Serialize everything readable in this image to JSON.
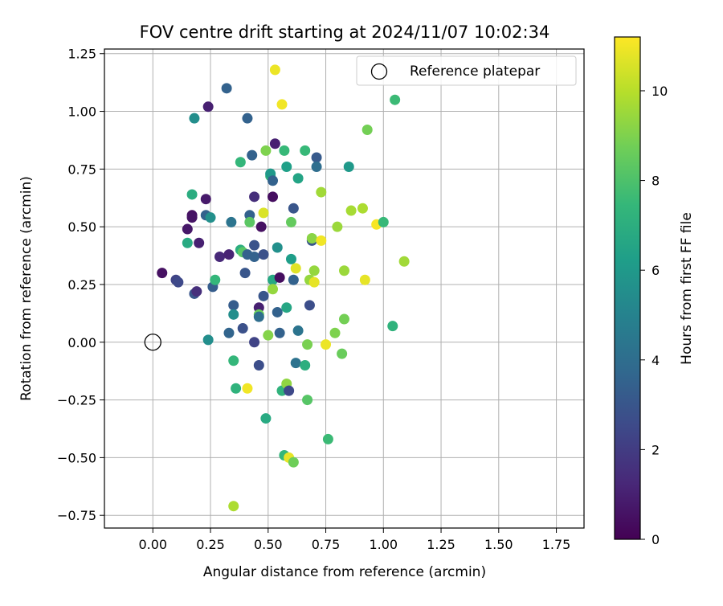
{
  "chart_data": {
    "type": "scatter",
    "title": "FOV centre drift starting at 2024/11/07 10:02:34",
    "xlabel": "Angular distance from reference (arcmin)",
    "ylabel": "Rotation from reference (arcmin)",
    "xlim": [
      -0.21,
      1.87
    ],
    "ylim": [
      -0.805,
      1.27
    ],
    "x_ticks": [
      0.0,
      0.25,
      0.5,
      0.75,
      1.0,
      1.25,
      1.5,
      1.75
    ],
    "x_tick_labels": [
      "0.00",
      "0.25",
      "0.50",
      "0.75",
      "1.00",
      "1.25",
      "1.50",
      "1.75"
    ],
    "y_ticks": [
      -0.75,
      -0.5,
      -0.25,
      0.0,
      0.25,
      0.5,
      0.75,
      1.0,
      1.25
    ],
    "y_tick_labels": [
      "−0.75",
      "−0.50",
      "−0.25",
      "0.00",
      "0.25",
      "0.50",
      "0.75",
      "1.00",
      "1.25"
    ],
    "grid": true,
    "legend": {
      "placement": "top-right",
      "entries": [
        "Reference platepar"
      ]
    },
    "reference_point": {
      "name": "Reference platepar",
      "x": 0.0,
      "y": 0.0
    },
    "colorbar": {
      "label": "Hours from first FF file",
      "colormap": "viridis",
      "range": [
        0,
        11.2
      ],
      "ticks": [
        0,
        2,
        4,
        6,
        8,
        10
      ],
      "tick_labels": [
        "0",
        "2",
        "4",
        "6",
        "8",
        "10"
      ]
    },
    "points": [
      {
        "x": 0.04,
        "y": 0.3,
        "h": 0.5
      },
      {
        "x": 0.1,
        "y": 0.27,
        "h": 2.3
      },
      {
        "x": 0.11,
        "y": 0.26,
        "h": 2.5
      },
      {
        "x": 0.15,
        "y": 0.49,
        "h": 0.7
      },
      {
        "x": 0.15,
        "y": 0.43,
        "h": 6.8
      },
      {
        "x": 0.17,
        "y": 0.64,
        "h": 6.9
      },
      {
        "x": 0.17,
        "y": 0.55,
        "h": 0.5
      },
      {
        "x": 0.17,
        "y": 0.54,
        "h": 0.6
      },
      {
        "x": 0.18,
        "y": 0.97,
        "h": 5.5
      },
      {
        "x": 0.18,
        "y": 0.21,
        "h": 3.0
      },
      {
        "x": 0.19,
        "y": 0.22,
        "h": 1.5
      },
      {
        "x": 0.2,
        "y": 0.43,
        "h": 1.0
      },
      {
        "x": 0.23,
        "y": 0.62,
        "h": 0.8
      },
      {
        "x": 0.23,
        "y": 0.55,
        "h": 3.5
      },
      {
        "x": 0.24,
        "y": 1.02,
        "h": 1.0
      },
      {
        "x": 0.24,
        "y": 0.01,
        "h": 5.5
      },
      {
        "x": 0.25,
        "y": 0.54,
        "h": 5.6
      },
      {
        "x": 0.26,
        "y": 0.24,
        "h": 3.3
      },
      {
        "x": 0.27,
        "y": 0.27,
        "h": 7.4
      },
      {
        "x": 0.29,
        "y": 0.37,
        "h": 1.3
      },
      {
        "x": 0.32,
        "y": 1.1,
        "h": 3.5
      },
      {
        "x": 0.33,
        "y": 0.04,
        "h": 3.6
      },
      {
        "x": 0.33,
        "y": 0.38,
        "h": 1.1
      },
      {
        "x": 0.34,
        "y": 0.52,
        "h": 4.3
      },
      {
        "x": 0.35,
        "y": -0.08,
        "h": 7.4
      },
      {
        "x": 0.35,
        "y": 0.16,
        "h": 3.3
      },
      {
        "x": 0.35,
        "y": 0.12,
        "h": 5.5
      },
      {
        "x": 0.36,
        "y": -0.2,
        "h": 7.2
      },
      {
        "x": 0.35,
        "y": -0.71,
        "h": 9.8
      },
      {
        "x": 0.38,
        "y": 0.78,
        "h": 7.4
      },
      {
        "x": 0.38,
        "y": 0.4,
        "h": 7.0
      },
      {
        "x": 0.39,
        "y": 0.39,
        "h": 8.2
      },
      {
        "x": 0.39,
        "y": 0.06,
        "h": 2.8
      },
      {
        "x": 0.4,
        "y": 0.3,
        "h": 3.0
      },
      {
        "x": 0.41,
        "y": 0.38,
        "h": 3.5
      },
      {
        "x": 0.41,
        "y": 0.97,
        "h": 3.5
      },
      {
        "x": 0.41,
        "y": -0.2,
        "h": 11.0
      },
      {
        "x": 0.42,
        "y": 0.55,
        "h": 3.5
      },
      {
        "x": 0.42,
        "y": 0.52,
        "h": 8.3
      },
      {
        "x": 0.43,
        "y": 0.81,
        "h": 3.5
      },
      {
        "x": 0.44,
        "y": 0.42,
        "h": 2.9
      },
      {
        "x": 0.44,
        "y": 0.37,
        "h": 3.5
      },
      {
        "x": 0.44,
        "y": 0.63,
        "h": 1.5
      },
      {
        "x": 0.44,
        "y": 0.0,
        "h": 2.3
      },
      {
        "x": 0.46,
        "y": 0.15,
        "h": 1.0
      },
      {
        "x": 0.46,
        "y": 0.12,
        "h": 8.6
      },
      {
        "x": 0.46,
        "y": 0.11,
        "h": 4.0
      },
      {
        "x": 0.46,
        "y": -0.1,
        "h": 2.7
      },
      {
        "x": 0.47,
        "y": 0.5,
        "h": 0.5
      },
      {
        "x": 0.48,
        "y": 0.38,
        "h": 2.8
      },
      {
        "x": 0.48,
        "y": 0.2,
        "h": 3.0
      },
      {
        "x": 0.48,
        "y": 0.56,
        "h": 10.6
      },
      {
        "x": 0.49,
        "y": 0.83,
        "h": 9.0
      },
      {
        "x": 0.49,
        "y": -0.33,
        "h": 6.8
      },
      {
        "x": 0.5,
        "y": 0.03,
        "h": 9.1
      },
      {
        "x": 0.51,
        "y": 0.72,
        "h": 7.5
      },
      {
        "x": 0.51,
        "y": 0.73,
        "h": 6.0
      },
      {
        "x": 0.52,
        "y": 0.27,
        "h": 6.7
      },
      {
        "x": 0.52,
        "y": 0.7,
        "h": 3.5
      },
      {
        "x": 0.52,
        "y": 0.63,
        "h": 0.4
      },
      {
        "x": 0.52,
        "y": 0.23,
        "h": 9.4
      },
      {
        "x": 0.53,
        "y": 0.86,
        "h": 1.0
      },
      {
        "x": 0.53,
        "y": 1.18,
        "h": 10.9
      },
      {
        "x": 0.54,
        "y": 0.41,
        "h": 5.6
      },
      {
        "x": 0.54,
        "y": 0.13,
        "h": 3.5
      },
      {
        "x": 0.55,
        "y": 0.04,
        "h": 3.5
      },
      {
        "x": 0.55,
        "y": 0.28,
        "h": 0.4
      },
      {
        "x": 0.56,
        "y": 1.03,
        "h": 11.0
      },
      {
        "x": 0.56,
        "y": -0.21,
        "h": 7.2
      },
      {
        "x": 0.57,
        "y": -0.49,
        "h": 7.4
      },
      {
        "x": 0.57,
        "y": 0.83,
        "h": 7.5
      },
      {
        "x": 0.58,
        "y": 0.76,
        "h": 6.3
      },
      {
        "x": 0.58,
        "y": 0.15,
        "h": 6.6
      },
      {
        "x": 0.58,
        "y": -0.18,
        "h": 9.3
      },
      {
        "x": 0.59,
        "y": -0.21,
        "h": 2.5
      },
      {
        "x": 0.59,
        "y": -0.5,
        "h": 10.8
      },
      {
        "x": 0.6,
        "y": 0.36,
        "h": 6.2
      },
      {
        "x": 0.6,
        "y": 0.52,
        "h": 8.5
      },
      {
        "x": 0.61,
        "y": 0.58,
        "h": 3.0
      },
      {
        "x": 0.61,
        "y": -0.52,
        "h": 8.7
      },
      {
        "x": 0.61,
        "y": 0.27,
        "h": 3.5
      },
      {
        "x": 0.62,
        "y": 0.32,
        "h": 10.7
      },
      {
        "x": 0.62,
        "y": -0.09,
        "h": 4.2
      },
      {
        "x": 0.63,
        "y": 0.05,
        "h": 4.3
      },
      {
        "x": 0.63,
        "y": 0.71,
        "h": 6.5
      },
      {
        "x": 0.66,
        "y": 0.83,
        "h": 7.5
      },
      {
        "x": 0.66,
        "y": -0.1,
        "h": 7.0
      },
      {
        "x": 0.67,
        "y": -0.25,
        "h": 8.2
      },
      {
        "x": 0.67,
        "y": -0.01,
        "h": 8.9
      },
      {
        "x": 0.68,
        "y": 0.27,
        "h": 9.4
      },
      {
        "x": 0.68,
        "y": 0.16,
        "h": 2.7
      },
      {
        "x": 0.69,
        "y": 0.44,
        "h": 3.0
      },
      {
        "x": 0.69,
        "y": 0.45,
        "h": 9.2
      },
      {
        "x": 0.7,
        "y": 0.31,
        "h": 9.4
      },
      {
        "x": 0.7,
        "y": 0.26,
        "h": 10.8
      },
      {
        "x": 0.71,
        "y": 0.8,
        "h": 3.2
      },
      {
        "x": 0.71,
        "y": 0.76,
        "h": 4.0
      },
      {
        "x": 0.73,
        "y": 0.65,
        "h": 9.6
      },
      {
        "x": 0.73,
        "y": 0.44,
        "h": 11.0
      },
      {
        "x": 0.75,
        "y": -0.01,
        "h": 10.9
      },
      {
        "x": 0.76,
        "y": -0.42,
        "h": 7.6
      },
      {
        "x": 0.79,
        "y": 0.04,
        "h": 9.0
      },
      {
        "x": 0.8,
        "y": 0.5,
        "h": 9.5
      },
      {
        "x": 0.82,
        "y": -0.05,
        "h": 8.6
      },
      {
        "x": 0.83,
        "y": 0.31,
        "h": 9.5
      },
      {
        "x": 0.83,
        "y": 0.1,
        "h": 8.8
      },
      {
        "x": 0.85,
        "y": 0.76,
        "h": 6.0
      },
      {
        "x": 0.86,
        "y": 0.57,
        "h": 9.7
      },
      {
        "x": 0.91,
        "y": 0.58,
        "h": 9.8
      },
      {
        "x": 0.92,
        "y": 0.27,
        "h": 10.8
      },
      {
        "x": 0.93,
        "y": 0.92,
        "h": 8.8
      },
      {
        "x": 0.97,
        "y": 0.51,
        "h": 11.1
      },
      {
        "x": 1.0,
        "y": 0.52,
        "h": 7.5
      },
      {
        "x": 1.04,
        "y": 0.07,
        "h": 7.2
      },
      {
        "x": 1.05,
        "y": 1.05,
        "h": 7.6
      },
      {
        "x": 1.09,
        "y": 0.35,
        "h": 9.6
      }
    ]
  }
}
